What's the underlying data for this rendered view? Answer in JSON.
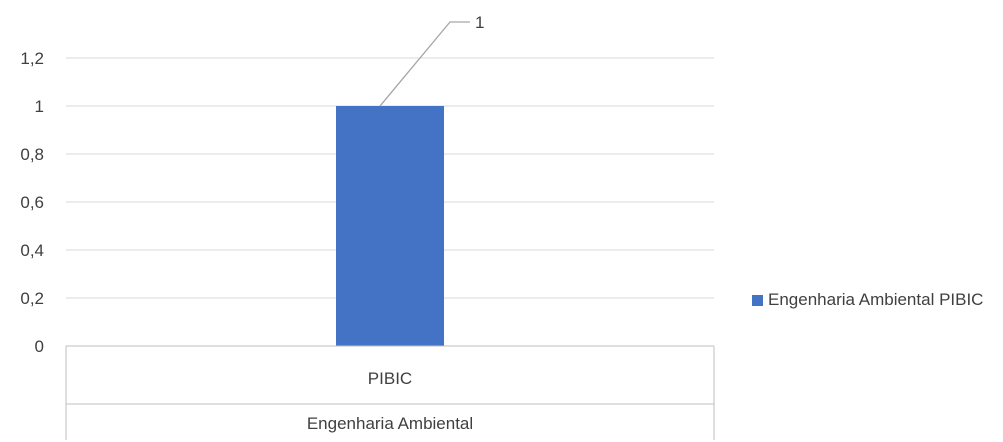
{
  "chart_data": {
    "type": "bar",
    "categories": [
      "PIBIC"
    ],
    "group_label": "Engenharia Ambiental",
    "series": [
      {
        "name": "Engenharia Ambiental  PIBIC",
        "values": [
          1
        ],
        "color": "#4472C4"
      }
    ],
    "y_ticks": [
      "0",
      "0,2",
      "0,4",
      "0,6",
      "0,8",
      "1",
      "1,2"
    ],
    "ylim": [
      0,
      1.2
    ],
    "data_labels": [
      "1"
    ],
    "grid": true,
    "legend_position": "right",
    "title": "",
    "xlabel": "",
    "ylabel": ""
  }
}
